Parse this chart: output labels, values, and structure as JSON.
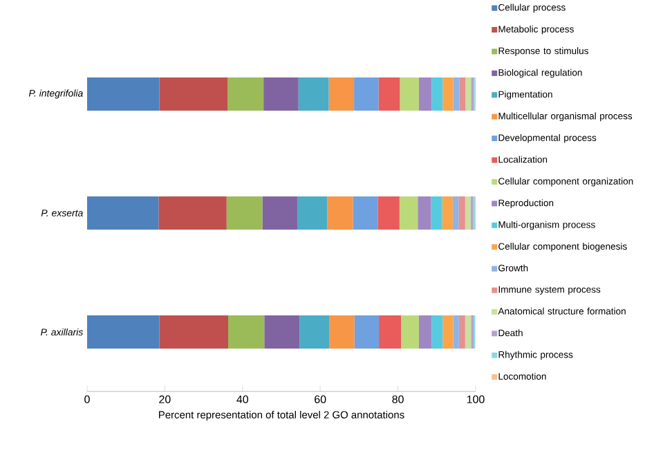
{
  "chart_data": {
    "type": "bar",
    "orientation": "horizontal",
    "stacked": true,
    "xlabel": "Percent representation of total level 2 GO annotations",
    "categories": [
      "P. integrifolia",
      "P. exserta",
      "P. axillaris"
    ],
    "xlim": [
      0,
      100
    ],
    "xticks": [
      0,
      20,
      40,
      60,
      80,
      100
    ],
    "legend": "right",
    "grid": false,
    "series": [
      {
        "name": "Cellular process",
        "color": "#4f81bd",
        "values": [
          18.6,
          18.4,
          18.6
        ]
      },
      {
        "name": "Metabolic process",
        "color": "#c0504d",
        "values": [
          17.6,
          17.5,
          17.7
        ]
      },
      {
        "name": "Response to stimulus",
        "color": "#9bbb59",
        "values": [
          9.2,
          9.2,
          9.3
        ]
      },
      {
        "name": "Biological regulation",
        "color": "#8064a2",
        "values": [
          9.0,
          9.1,
          9.1
        ]
      },
      {
        "name": "Pigmentation",
        "color": "#4bacc6",
        "values": [
          7.8,
          7.6,
          7.6
        ]
      },
      {
        "name": "Multicellular organismal process",
        "color": "#f79646",
        "values": [
          6.5,
          6.6,
          6.5
        ]
      },
      {
        "name": "Developmental process",
        "color": "#6fa0e0",
        "values": [
          6.3,
          6.4,
          6.3
        ]
      },
      {
        "name": "Localization",
        "color": "#e85c5c",
        "values": [
          5.5,
          5.6,
          5.7
        ]
      },
      {
        "name": "Cellular component organization",
        "color": "#bcd97a",
        "values": [
          4.9,
          4.7,
          4.6
        ]
      },
      {
        "name": "Reproduction",
        "color": "#9f87c4",
        "values": [
          3.3,
          3.4,
          3.3
        ]
      },
      {
        "name": "Multi-organism process",
        "color": "#56cbe0",
        "values": [
          2.8,
          2.9,
          2.8
        ]
      },
      {
        "name": "Cellular component biogenesis",
        "color": "#fba54a",
        "values": [
          2.7,
          2.7,
          2.7
        ]
      },
      {
        "name": "Growth",
        "color": "#8fb3e6",
        "values": [
          1.6,
          1.5,
          1.5
        ]
      },
      {
        "name": "Immune system process",
        "color": "#e69090",
        "values": [
          1.6,
          1.7,
          1.6
        ]
      },
      {
        "name": "Anatomical structure formation",
        "color": "#c9e09e",
        "values": [
          1.4,
          1.4,
          1.5
        ]
      },
      {
        "name": "Death",
        "color": "#b3a2cf",
        "values": [
          0.7,
          0.6,
          0.7
        ]
      },
      {
        "name": "Rhythmic process",
        "color": "#8bd6e8",
        "values": [
          0.3,
          0.5,
          0.4
        ]
      },
      {
        "name": "Locomotion",
        "color": "#f9c08e",
        "values": [
          0.2,
          0.2,
          null
        ]
      }
    ]
  }
}
